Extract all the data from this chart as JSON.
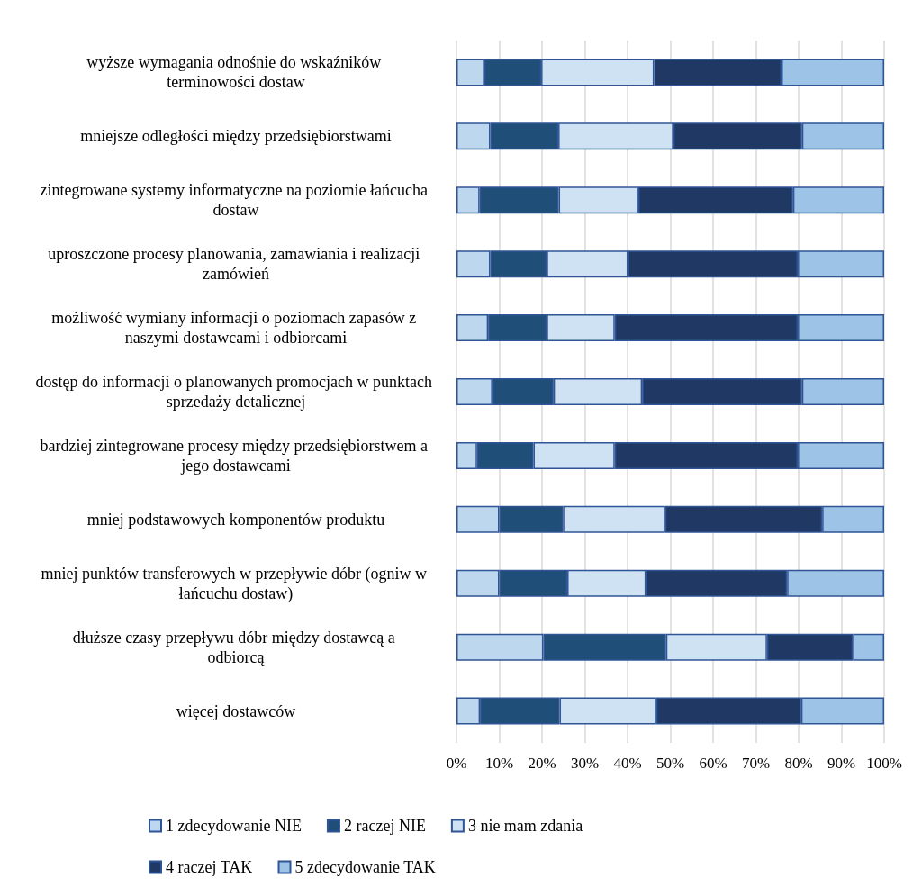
{
  "chart_data": {
    "type": "bar",
    "orientation": "horizontal",
    "stacked": true,
    "categories": [
      "wyższe wymagania odnośnie do wskaźników terminowości dostaw",
      "mniejsze odległości między przedsiębiorstwami",
      "zintegrowane systemy informatyczne na poziomie łańcucha dostaw",
      "uproszczone procesy planowania, zamawiania i realizacji zamówień",
      "możliwość wymiany informacji o poziomach zapasów z naszymi dostawcami i odbiorcami",
      "dostęp do informacji o planowanych promocjach w punktach sprzedaży detalicznej",
      "bardziej zintegrowane procesy między przedsiębiorstwem a jego dostawcami",
      "mniej podstawowych komponentów produktu",
      "mniej punktów transferowych w przepływie dóbr (ogniw w łańcuchu dostaw)",
      "dłuższe czasy przepływu dóbr między dostawcą a odbiorcą",
      "więcej dostawców"
    ],
    "series": [
      {
        "name": "1 zdecydowanie NIE",
        "color": "#bdd7ee",
        "values": [
          6.5,
          7.9,
          5.4,
          7.9,
          7.4,
          8.4,
          4.8,
          10.0,
          10.0,
          20.3,
          5.5
        ]
      },
      {
        "name": "2 raczej NIE",
        "color": "#1f4e79",
        "values": [
          13.3,
          15.9,
          18.5,
          13.2,
          13.7,
          14.3,
          13.2,
          14.9,
          15.9,
          28.7,
          18.6
        ]
      },
      {
        "name": "3 nie mam zdania",
        "color": "#cfe2f3",
        "values": [
          26.4,
          26.9,
          18.6,
          19.0,
          15.9,
          20.7,
          19.0,
          23.9,
          18.4,
          23.6,
          22.6
        ]
      },
      {
        "name": "4 raczej TAK",
        "color": "#203864",
        "values": [
          29.8,
          30.1,
          36.2,
          39.7,
          42.8,
          37.4,
          42.8,
          36.7,
          33.0,
          20.1,
          33.9
        ]
      },
      {
        "name": "5 zdecydowanie TAK",
        "color": "#9dc3e6",
        "values": [
          24.0,
          19.2,
          21.3,
          20.2,
          20.2,
          19.2,
          20.2,
          14.5,
          22.7,
          7.3,
          19.4
        ]
      }
    ],
    "xlim": [
      0,
      100
    ],
    "xticks": [
      {
        "value": 0,
        "label": "0%"
      },
      {
        "value": 10,
        "label": "10%"
      },
      {
        "value": 20,
        "label": "20%"
      },
      {
        "value": 30,
        "label": "30%"
      },
      {
        "value": 40,
        "label": "40%"
      },
      {
        "value": 50,
        "label": "50%"
      },
      {
        "value": 60,
        "label": "60%"
      },
      {
        "value": 70,
        "label": "70%"
      },
      {
        "value": 80,
        "label": "80%"
      },
      {
        "value": 90,
        "label": "90%"
      },
      {
        "value": 100,
        "label": "100%"
      }
    ],
    "grid": "x",
    "legend": "bottom"
  }
}
